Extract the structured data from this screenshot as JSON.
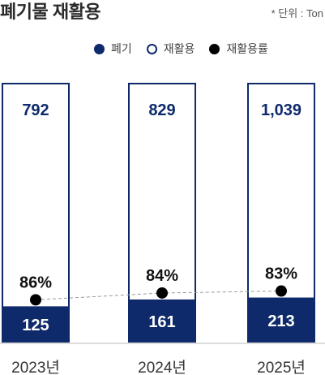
{
  "header": {
    "title": "폐기물 재활용",
    "unit": "* 단위 : Ton"
  },
  "legend": [
    {
      "label": "폐기",
      "key": "waste"
    },
    {
      "label": "재활용",
      "key": "recycle"
    },
    {
      "label": "재활용률",
      "key": "rate"
    }
  ],
  "colors": {
    "waste": "#0e2a6b",
    "recycle_fill": "#ffffff",
    "recycle_border": "#0e2a6b",
    "rate_dot": "#000000",
    "rate_line": "#999999",
    "recycle_text": "#0e2a6b",
    "waste_text": "#ffffff"
  },
  "chart_data": {
    "type": "bar",
    "title": "폐기물 재활용",
    "unit": "* 단위 : Ton",
    "categories": [
      "2023년",
      "2024년",
      "2025년"
    ],
    "series": [
      {
        "name": "폐기",
        "values": [
          125,
          161,
          213
        ],
        "labels": [
          "125",
          "161",
          "213"
        ]
      },
      {
        "name": "재활용",
        "values": [
          792,
          829,
          1039
        ],
        "labels": [
          "792",
          "829",
          "1,039"
        ]
      },
      {
        "name": "재활용률",
        "values": [
          86,
          84,
          83
        ],
        "labels": [
          "86%",
          "84%",
          "83%"
        ]
      }
    ],
    "stacked": true,
    "percent_stacked": true,
    "legend_position": "top-right",
    "grid": false
  }
}
